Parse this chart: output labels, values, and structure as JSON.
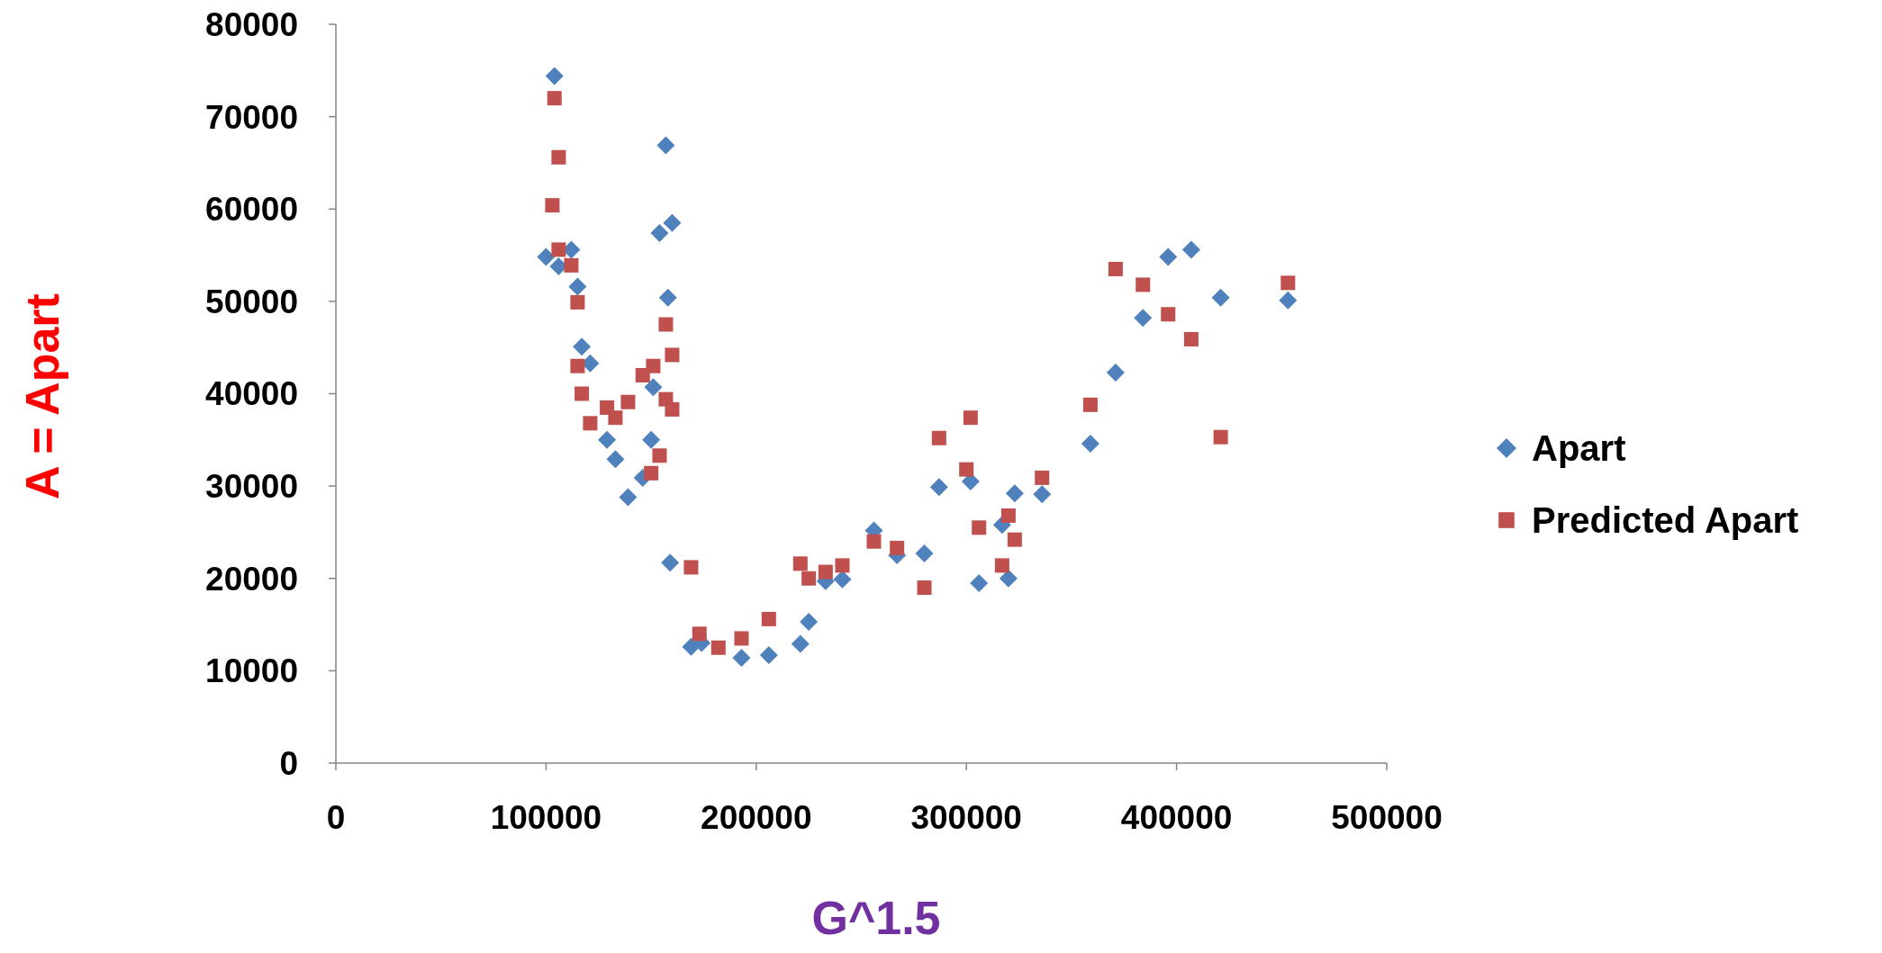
{
  "chart_data": {
    "type": "scatter",
    "xlabel": "G^1.5",
    "ylabel": "A = Apart",
    "xlim": [
      0,
      500000
    ],
    "ylim": [
      0,
      80000
    ],
    "xticks": [
      0,
      100000,
      200000,
      300000,
      400000,
      500000
    ],
    "yticks": [
      0,
      10000,
      20000,
      30000,
      40000,
      50000,
      60000,
      70000,
      80000
    ],
    "grid": false,
    "legend": "right",
    "series": [
      {
        "name": "Apart",
        "color": "#4f81bd",
        "marker": "diamond",
        "x": [
          104000,
          100000,
          106000,
          112000,
          115000,
          117000,
          121000,
          129000,
          133000,
          139000,
          146000,
          151000,
          150000,
          157000,
          154000,
          160000,
          158000,
          159000,
          169000,
          174000,
          193000,
          206000,
          221000,
          225000,
          233000,
          241000,
          256000,
          267000,
          280000,
          287000,
          302000,
          306000,
          317000,
          323000,
          320000,
          336000,
          359000,
          371000,
          384000,
          396000,
          407000,
          421000,
          453000
        ],
        "values": [
          74400,
          54800,
          53800,
          55600,
          51600,
          45100,
          43300,
          35000,
          32900,
          28800,
          30900,
          40700,
          35000,
          66900,
          57400,
          58500,
          50400,
          21700,
          12600,
          13000,
          11400,
          11700,
          12900,
          15300,
          19700,
          19900,
          25200,
          22500,
          22700,
          29900,
          30500,
          19500,
          25800,
          29200,
          20000,
          29100,
          34600,
          42300,
          48200,
          54800,
          55600,
          50400,
          50100
        ]
      },
      {
        "name": "Predicted Apart",
        "color": "#c0504d",
        "marker": "square",
        "x": [
          104000,
          106000,
          103000,
          106000,
          112000,
          115000,
          115000,
          117000,
          121000,
          129000,
          133000,
          139000,
          146000,
          151000,
          150000,
          154000,
          157000,
          160000,
          157000,
          160000,
          169000,
          173000,
          182000,
          193000,
          206000,
          221000,
          225000,
          233000,
          241000,
          256000,
          267000,
          280000,
          287000,
          302000,
          300000,
          306000,
          317000,
          320000,
          323000,
          336000,
          359000,
          371000,
          384000,
          396000,
          407000,
          421000,
          453000
        ],
        "values": [
          72000,
          65600,
          60400,
          55600,
          53900,
          49900,
          43000,
          40000,
          36800,
          38500,
          37400,
          39100,
          42000,
          43000,
          31400,
          33300,
          47500,
          44200,
          39400,
          38300,
          21200,
          14000,
          12500,
          13500,
          15600,
          21600,
          20000,
          20700,
          21400,
          24000,
          23300,
          19000,
          35200,
          37400,
          31800,
          25500,
          21400,
          26800,
          24200,
          30900,
          38800,
          53500,
          51800,
          48600,
          45900,
          35300,
          52000
        ]
      }
    ]
  }
}
